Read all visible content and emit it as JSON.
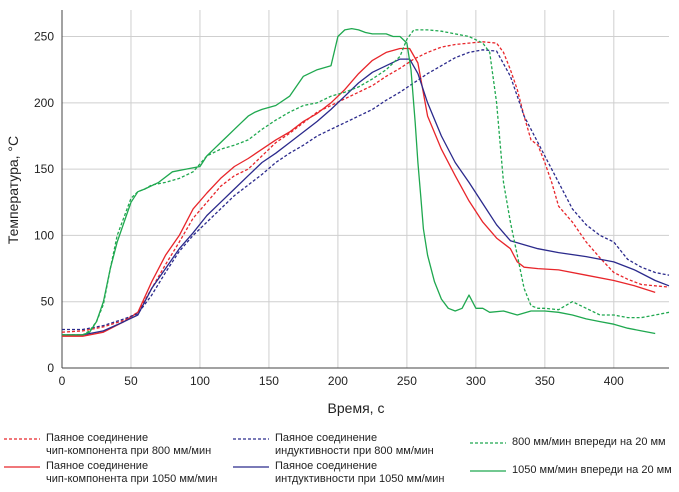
{
  "chart_data": {
    "type": "line",
    "xlabel": "Время, с",
    "ylabel": "Температура, °C",
    "xlim": [
      0,
      440
    ],
    "ylim": [
      0,
      270
    ],
    "xticks": [
      0,
      50,
      100,
      150,
      200,
      250,
      300,
      350,
      400
    ],
    "yticks": [
      0,
      50,
      100,
      150,
      200,
      250
    ],
    "grid": true,
    "legend_position": "bottom",
    "series": [
      {
        "name": "Паяное соединение\nчип-компонента при 800 мм/мин",
        "color": "#e8262b",
        "dash": true,
        "x": [
          0,
          15,
          30,
          45,
          55,
          65,
          75,
          85,
          95,
          105,
          115,
          125,
          135,
          145,
          155,
          165,
          175,
          185,
          195,
          205,
          215,
          225,
          235,
          245,
          255,
          265,
          275,
          285,
          295,
          305,
          315,
          320,
          325,
          330,
          335,
          340,
          345,
          350,
          355,
          360,
          370,
          380,
          390,
          400,
          410,
          420,
          430,
          440
        ],
        "y": [
          27,
          28,
          31,
          36,
          42,
          60,
          78,
          95,
          113,
          125,
          137,
          145,
          150,
          160,
          170,
          177,
          185,
          193,
          198,
          203,
          208,
          213,
          220,
          226,
          233,
          238,
          242,
          244,
          245,
          246,
          245,
          238,
          225,
          210,
          190,
          172,
          168,
          155,
          140,
          122,
          110,
          95,
          83,
          72,
          67,
          63,
          62,
          61
        ]
      },
      {
        "name": "Паяное соединение\nчип-компонента при 1050 мм/мин",
        "color": "#e8262b",
        "dash": false,
        "x": [
          0,
          15,
          30,
          45,
          55,
          65,
          75,
          85,
          95,
          105,
          115,
          125,
          135,
          145,
          155,
          165,
          175,
          185,
          195,
          205,
          215,
          225,
          235,
          245,
          252,
          258,
          265,
          275,
          285,
          295,
          305,
          315,
          325,
          330,
          335,
          345,
          360,
          380,
          400,
          415,
          430
        ],
        "y": [
          24,
          24,
          27,
          35,
          42,
          65,
          85,
          100,
          120,
          132,
          143,
          152,
          158,
          165,
          172,
          178,
          186,
          192,
          200,
          210,
          222,
          232,
          238,
          241,
          241,
          230,
          190,
          165,
          145,
          126,
          110,
          98,
          90,
          80,
          76,
          75,
          74,
          70,
          66,
          62,
          57
        ]
      },
      {
        "name": "Паяное соединение\nиндуктивности при 800 мм/мин",
        "color": "#2b2a8c",
        "dash": true,
        "x": [
          0,
          15,
          30,
          45,
          55,
          65,
          75,
          85,
          95,
          105,
          115,
          125,
          135,
          145,
          155,
          165,
          175,
          185,
          195,
          205,
          215,
          225,
          235,
          245,
          255,
          265,
          275,
          285,
          295,
          305,
          315,
          325,
          330,
          335,
          340,
          350,
          360,
          370,
          380,
          390,
          400,
          410,
          420,
          430,
          440
        ],
        "y": [
          29,
          29,
          32,
          37,
          41,
          55,
          72,
          88,
          100,
          110,
          120,
          130,
          138,
          146,
          155,
          162,
          168,
          175,
          180,
          185,
          190,
          195,
          202,
          208,
          215,
          222,
          228,
          234,
          238,
          240,
          239,
          220,
          205,
          190,
          180,
          160,
          140,
          120,
          108,
          100,
          95,
          82,
          76,
          72,
          70
        ]
      },
      {
        "name": "Паяное соединение\nинтдуктивности при 1050 мм/мин",
        "color": "#2b2a8c",
        "dash": false,
        "x": [
          0,
          15,
          30,
          45,
          55,
          65,
          75,
          85,
          95,
          105,
          115,
          125,
          135,
          145,
          155,
          165,
          175,
          185,
          195,
          205,
          215,
          225,
          235,
          245,
          252,
          258,
          265,
          275,
          285,
          295,
          305,
          315,
          325,
          335,
          345,
          360,
          380,
          400,
          415,
          430,
          440
        ],
        "y": [
          25,
          25,
          28,
          35,
          40,
          60,
          75,
          90,
          102,
          115,
          125,
          135,
          145,
          155,
          162,
          170,
          178,
          186,
          195,
          205,
          215,
          223,
          228,
          233,
          233,
          222,
          200,
          175,
          155,
          140,
          124,
          108,
          96,
          93,
          90,
          87,
          84,
          80,
          74,
          66,
          62
        ]
      },
      {
        "name": "800 мм/мин впереди на 20 мм",
        "color": "#1fa84f",
        "dash": true,
        "x": [
          0,
          15,
          20,
          25,
          30,
          35,
          40,
          50,
          55,
          60,
          65,
          75,
          85,
          95,
          105,
          115,
          125,
          135,
          145,
          155,
          165,
          175,
          185,
          195,
          205,
          215,
          225,
          235,
          245,
          250,
          255,
          265,
          275,
          285,
          295,
          305,
          310,
          315,
          320,
          325,
          330,
          335,
          340,
          345,
          350,
          360,
          370,
          380,
          390,
          400,
          410,
          420,
          430,
          440
        ],
        "y": [
          25,
          25,
          28,
          35,
          48,
          75,
          100,
          128,
          133,
          135,
          138,
          140,
          143,
          148,
          160,
          165,
          168,
          172,
          180,
          187,
          193,
          198,
          200,
          205,
          208,
          212,
          218,
          225,
          235,
          248,
          255,
          255,
          254,
          252,
          250,
          245,
          238,
          200,
          140,
          110,
          85,
          60,
          47,
          45,
          45,
          44,
          50,
          45,
          40,
          40,
          38,
          38,
          40,
          42
        ]
      },
      {
        "name": "1050 мм/мин впереди на 20 мм",
        "color": "#1fa84f",
        "dash": false,
        "x": [
          0,
          15,
          20,
          25,
          30,
          35,
          40,
          45,
          50,
          55,
          60,
          70,
          80,
          90,
          100,
          105,
          110,
          115,
          120,
          125,
          130,
          135,
          140,
          145,
          155,
          165,
          175,
          185,
          195,
          200,
          205,
          210,
          215,
          220,
          225,
          230,
          235,
          240,
          245,
          250,
          253,
          256,
          258,
          260,
          262,
          265,
          270,
          275,
          280,
          285,
          290,
          295,
          300,
          305,
          310,
          320,
          330,
          340,
          350,
          360,
          370,
          380,
          390,
          400,
          410,
          420,
          430
        ],
        "y": [
          25,
          25,
          27,
          35,
          50,
          75,
          95,
          110,
          125,
          133,
          135,
          140,
          148,
          150,
          152,
          160,
          165,
          170,
          175,
          180,
          185,
          190,
          193,
          195,
          198,
          205,
          220,
          225,
          228,
          250,
          255,
          256,
          255,
          253,
          252,
          252,
          252,
          250,
          250,
          245,
          225,
          185,
          155,
          130,
          105,
          85,
          65,
          52,
          45,
          43,
          45,
          55,
          45,
          45,
          42,
          43,
          40,
          43,
          43,
          42,
          40,
          37,
          35,
          33,
          30,
          28,
          26
        ]
      }
    ]
  }
}
